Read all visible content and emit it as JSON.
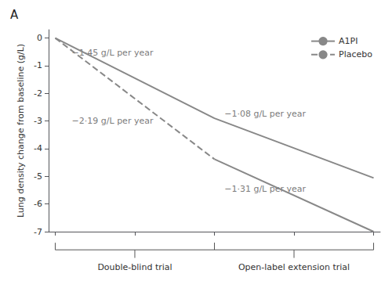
{
  "chart_data": {
    "type": "line",
    "title": "A",
    "ylabel": "Lung density change from baseline (g/L)",
    "x": [
      0,
      24,
      48
    ],
    "series": [
      {
        "name": "A1PI",
        "color": "#888888",
        "line_style": "solid",
        "values": [
          0,
          -2.9,
          -5.06
        ]
      },
      {
        "name": "Placebo",
        "color": "#888888",
        "line_style": "dashed",
        "values": [
          0,
          -4.38,
          null
        ]
      },
      {
        "name": "Placebo",
        "color": "#888888",
        "line_style": "solid",
        "values": [
          null,
          -4.38,
          -7.0
        ]
      }
    ],
    "xlim": [
      -1,
      49
    ],
    "xticks": [
      0,
      12,
      24,
      36,
      48
    ],
    "ylim": [
      -7,
      0.3
    ],
    "yticks": [
      0,
      -1,
      -2,
      -3,
      -4,
      -5,
      -6,
      -7
    ],
    "tick_labels": "y",
    "grid": false,
    "legend": "upper right",
    "annotations": [
      {
        "text": "−1·45 g/L per year",
        "x": 2.5,
        "y": -0.38
      },
      {
        "text": "−2·19 g/L per year",
        "x": 2.5,
        "y": -2.85
      },
      {
        "text": "−1·08 g/L per year",
        "x": 25.5,
        "y": -2.6
      },
      {
        "text": "−1·31 g/L per year",
        "x": 25.5,
        "y": -5.3
      }
    ],
    "phases": [
      {
        "label": "Double-blind trial",
        "start": 0,
        "end": 24
      },
      {
        "label": "Open-label extension trial",
        "start": 24,
        "end": 48
      }
    ]
  }
}
